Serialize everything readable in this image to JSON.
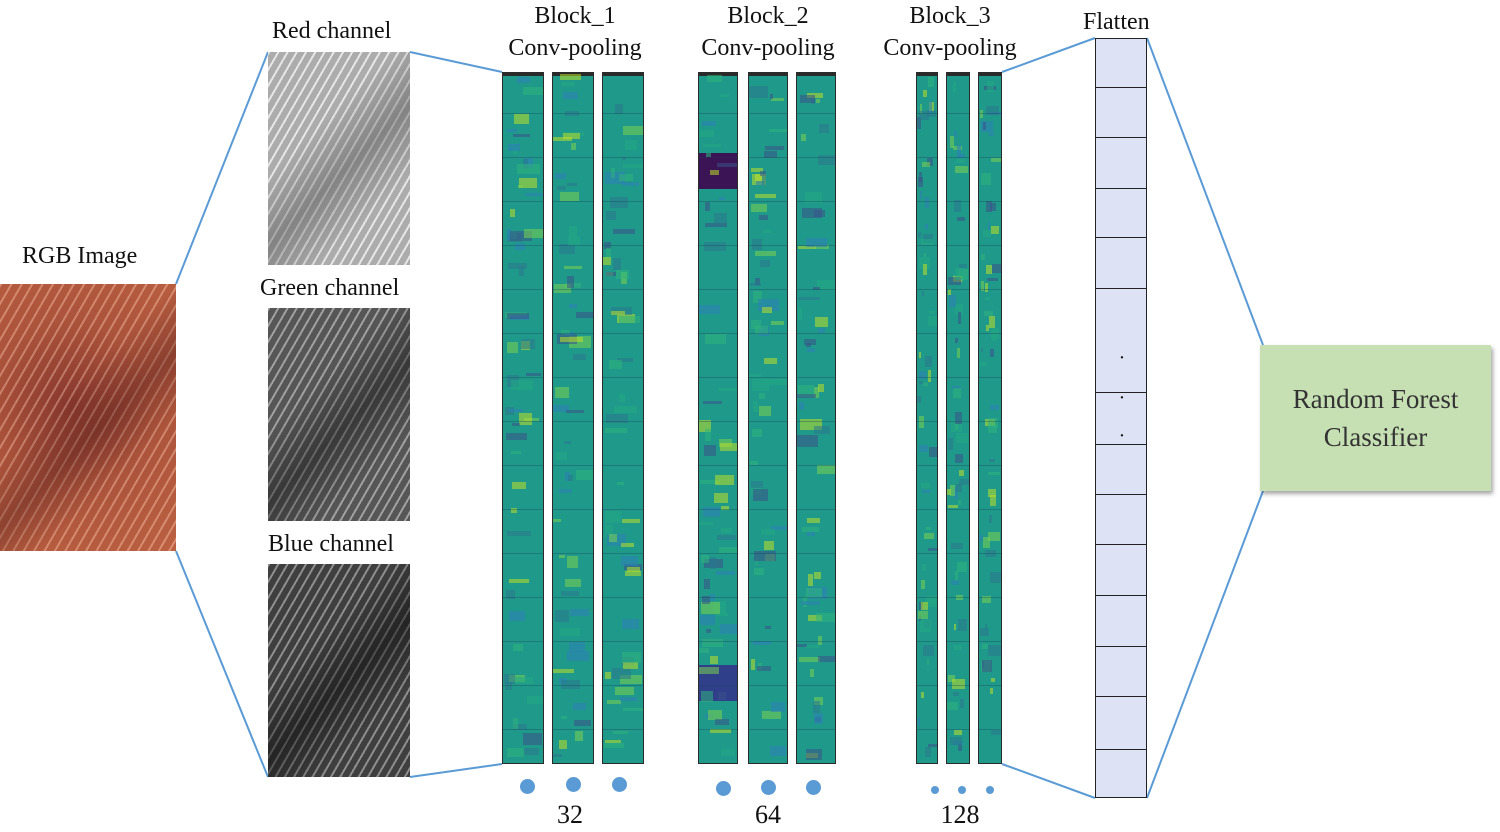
{
  "input": {
    "label": "RGB Image"
  },
  "channels": [
    {
      "label": "Red channel"
    },
    {
      "label": "Green channel"
    },
    {
      "label": "Blue channel"
    }
  ],
  "blocks": [
    {
      "name": "Block_1",
      "op": "Conv-pooling",
      "count": "32"
    },
    {
      "name": "Block_2",
      "op": "Conv-pooling",
      "count": "64"
    },
    {
      "name": "Block_3",
      "op": "Conv-pooling",
      "count": "128"
    }
  ],
  "flatten": {
    "label": "Flatten",
    "ellipsis": "·"
  },
  "classifier": {
    "line1": "Random Forest",
    "line2": "Classifier"
  },
  "colors": {
    "connector": "#5b9bd5",
    "classifier_fill": "#c6e0b4",
    "feature_base": "#1f9a8a",
    "flatten_fill": "#dde3f4"
  }
}
